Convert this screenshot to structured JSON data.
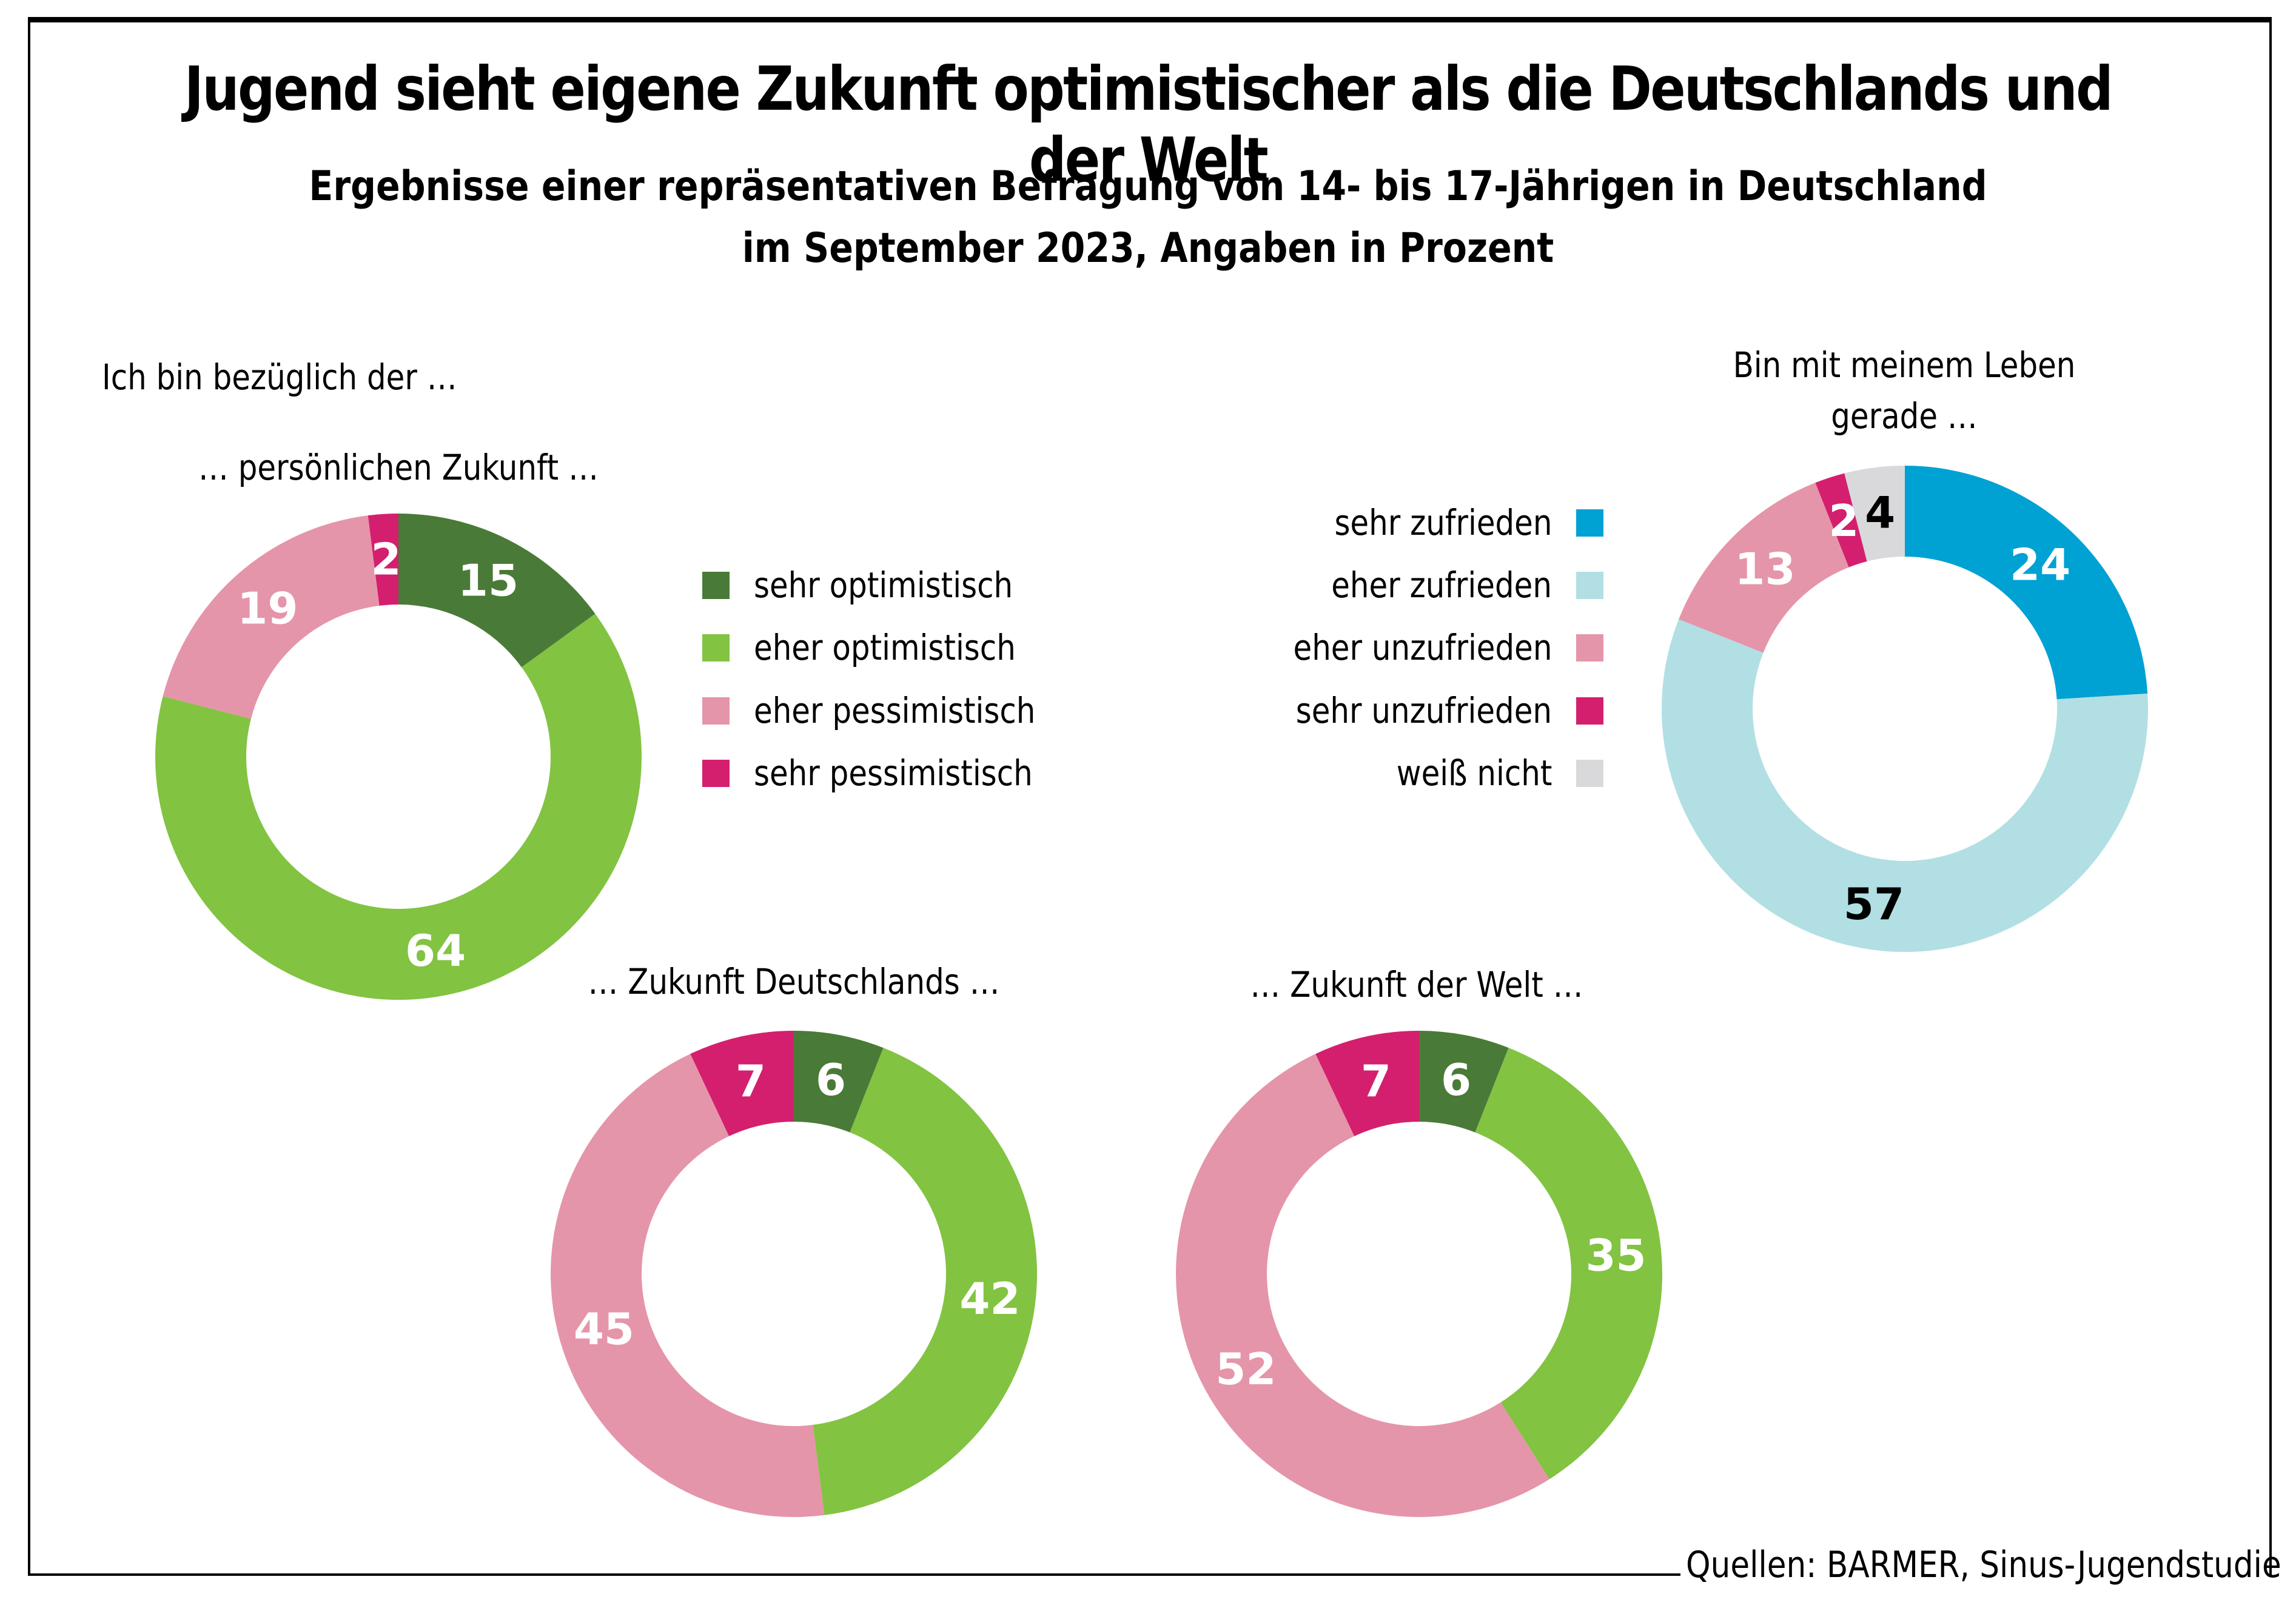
{
  "header": {
    "title": "Jugend sieht eigene Zukunft optimistischer als die Deutschlands und der Welt",
    "subtitle_line1": "Ergebnisse einer repräsentativen Befragung von 14- bis 17-Jährigen in Deutschland",
    "subtitle_line2": "im September 2023, Angaben in Prozent"
  },
  "intro_label": "Ich bin bezüglich der …",
  "source": "Quellen: BARMER, Sinus-Jugendstudie",
  "legend_optimism": [
    {
      "label": "sehr optimistisch",
      "color": "#4a7a38"
    },
    {
      "label": "eher optimistisch",
      "color": "#82c341"
    },
    {
      "label": "eher pessimistisch",
      "color": "#e595a9"
    },
    {
      "label": "sehr pessimistisch",
      "color": "#d41f6e"
    }
  ],
  "legend_satisfaction": [
    {
      "label": "sehr zufrieden",
      "color": "#00a1d3"
    },
    {
      "label": "eher zufrieden",
      "color": "#b1dfe4"
    },
    {
      "label": "eher unzufrieden",
      "color": "#e595a9"
    },
    {
      "label": "sehr unzufrieden",
      "color": "#d41f6e"
    },
    {
      "label": "weiß nicht",
      "color": "#d9d9db"
    }
  ],
  "chart_data": [
    {
      "type": "pie",
      "variant": "donut",
      "title": "… persönlichen Zukunft …",
      "categories": [
        "sehr optimistisch",
        "eher optimistisch",
        "eher pessimistisch",
        "sehr pessimistisch"
      ],
      "values": [
        15,
        64,
        19,
        2
      ],
      "colors": [
        "#4a7a38",
        "#82c341",
        "#e595a9",
        "#d41f6e"
      ],
      "label_colors": [
        "#ffffff",
        "#ffffff",
        "#ffffff",
        "#ffffff"
      ],
      "unit": "%"
    },
    {
      "type": "pie",
      "variant": "donut",
      "title": "Bin mit meinem Leben gerade …",
      "title_lines": [
        "Bin mit meinem Leben",
        "gerade …"
      ],
      "categories": [
        "sehr zufrieden",
        "eher zufrieden",
        "eher unzufrieden",
        "sehr unzufrieden",
        "weiß nicht"
      ],
      "values": [
        24,
        57,
        13,
        2,
        4
      ],
      "colors": [
        "#00a1d3",
        "#b1dfe4",
        "#e595a9",
        "#d41f6e",
        "#d9d9db"
      ],
      "label_colors": [
        "#ffffff",
        "#000000",
        "#ffffff",
        "#ffffff",
        "#000000"
      ],
      "unit": "%"
    },
    {
      "type": "pie",
      "variant": "donut",
      "title": "… Zukunft Deutschlands …",
      "categories": [
        "sehr optimistisch",
        "eher optimistisch",
        "eher pessimistisch",
        "sehr pessimistisch"
      ],
      "values": [
        6,
        42,
        45,
        7
      ],
      "colors": [
        "#4a7a38",
        "#82c341",
        "#e595a9",
        "#d41f6e"
      ],
      "label_colors": [
        "#ffffff",
        "#ffffff",
        "#ffffff",
        "#ffffff"
      ],
      "unit": "%"
    },
    {
      "type": "pie",
      "variant": "donut",
      "title": "… Zukunft der Welt …",
      "categories": [
        "sehr optimistisch",
        "eher optimistisch",
        "eher pessimistisch",
        "sehr pessimistisch"
      ],
      "values": [
        6,
        35,
        52,
        7
      ],
      "colors": [
        "#4a7a38",
        "#82c341",
        "#e595a9",
        "#d41f6e"
      ],
      "label_colors": [
        "#ffffff",
        "#ffffff",
        "#ffffff",
        "#ffffff"
      ],
      "unit": "%"
    }
  ]
}
